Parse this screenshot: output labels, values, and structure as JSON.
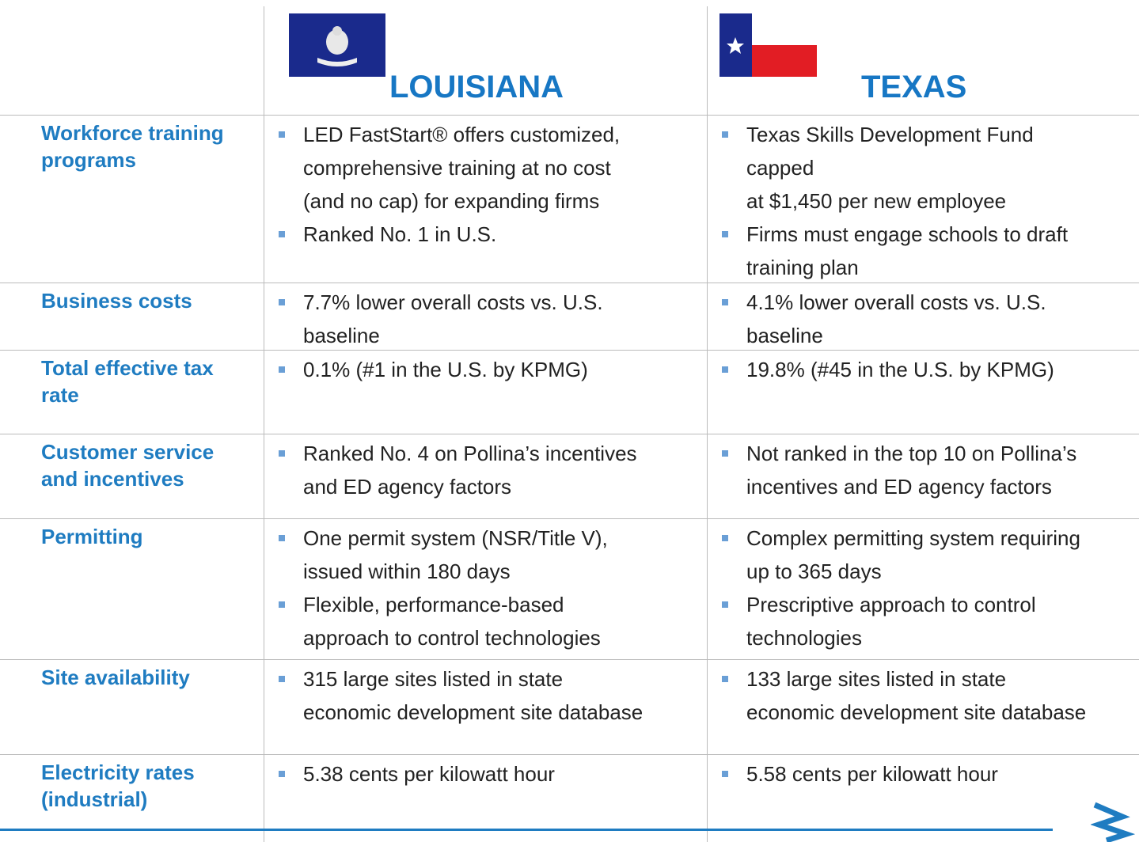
{
  "header": {
    "left": "LOUISIANA",
    "right": "TEXAS"
  },
  "rows": [
    {
      "label": [
        "Workforce training",
        "programs"
      ],
      "la": [
        [
          "LED FastStart® offers customized,",
          "comprehensive training at no cost",
          "(and no cap) for expanding firms"
        ],
        [
          "Ranked No. 1 in U.S."
        ]
      ],
      "tx": [
        [
          "Texas Skills Development Fund",
          "capped",
          "at $1,450 per new employee"
        ],
        [
          "Firms must engage schools to draft",
          "training plan"
        ]
      ]
    },
    {
      "label": [
        "Business costs"
      ],
      "la": [
        [
          "7.7% lower overall costs vs. U.S.",
          "baseline"
        ]
      ],
      "tx": [
        [
          "4.1% lower overall costs vs. U.S.",
          "baseline"
        ]
      ]
    },
    {
      "label": [
        "Total effective tax",
        "rate"
      ],
      "la": [
        [
          " 0.1% (#1 in the U.S. by KPMG)"
        ]
      ],
      "tx": [
        [
          "19.8% (#45 in the U.S. by KPMG)"
        ]
      ]
    },
    {
      "label": [
        "Customer service",
        "and incentives"
      ],
      "la": [
        [
          "Ranked No. 4 on Pollina’s incentives",
          "and ED agency factors"
        ]
      ],
      "tx": [
        [
          "Not ranked in the top 10 on Pollina’s",
          "incentives and ED agency factors"
        ]
      ]
    },
    {
      "label": [
        "Permitting"
      ],
      "la": [
        [
          "One permit system (NSR/Title V),",
          "issued within 180 days"
        ],
        [
          "Flexible, performance-based",
          "approach to control technologies"
        ]
      ],
      "tx": [
        [
          "Complex permitting system requiring",
          "up to 365 days"
        ],
        [
          "Prescriptive approach to control",
          "technologies"
        ]
      ]
    },
    {
      "label": [
        "Site availability"
      ],
      "la": [
        [
          "315 large sites listed in state",
          "economic development site database"
        ]
      ],
      "tx": [
        [
          "133 large sites listed in state",
          "economic development site database"
        ]
      ]
    },
    {
      "label": [
        "Electricity rates",
        "(industrial)"
      ],
      "la": [
        [
          "5.38 cents per kilowatt hour"
        ]
      ],
      "tx": [
        [
          "5.58 cents per kilowatt hour"
        ]
      ]
    }
  ]
}
